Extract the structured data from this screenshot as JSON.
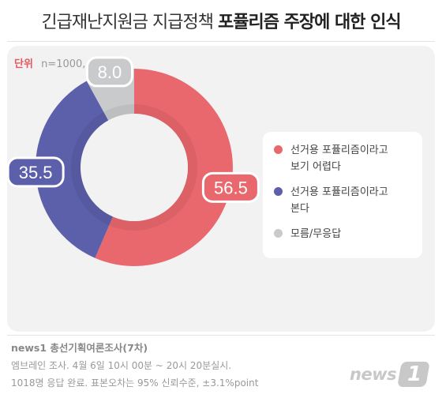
{
  "header": {
    "title_regular": "긴급재난지원금 지급정책",
    "title_bold": "포퓰리즘 주장에 대한 인식"
  },
  "unit": {
    "label": "단위",
    "value": "n=1000, %"
  },
  "chart_data": {
    "type": "pie",
    "style": "donut",
    "title": "긴급재난지원금 지급정책 포퓰리즘 주장에 대한 인식",
    "unit": "%",
    "categories": [
      "선거용 포퓰리즘이라고 보기 어렵다",
      "선거용 포퓰리즘이라고 본다",
      "모름/무응답"
    ],
    "values": [
      56.5,
      35.5,
      8.0
    ],
    "value_labels": [
      "56.5",
      "35.5",
      "8.0"
    ],
    "colors": [
      "#e9686d",
      "#5c5fa9",
      "#c9cacc"
    ],
    "legend_position": "right"
  },
  "legend": {
    "items": [
      {
        "line1": "선거용 포퓰리즘이라고",
        "line2": "보기 어렵다",
        "color": "#e9686d"
      },
      {
        "line1": "선거용 포퓰리즘이라고",
        "line2": "본다",
        "color": "#5c5fa9"
      },
      {
        "line1": "모름/무응답",
        "line2": "",
        "color": "#c9cacc"
      }
    ]
  },
  "footer": {
    "source": "news1 총선기획여론조사(7차)",
    "note1": "엠브레인 조사. 4월 6일 10시 00분 ~ 20시 20분실시.",
    "note2": "1018명 응답 완료. 표본오차는 95% 신뢰수준, ±3.1%point",
    "logo_text": "news",
    "logo_mark": "1"
  }
}
